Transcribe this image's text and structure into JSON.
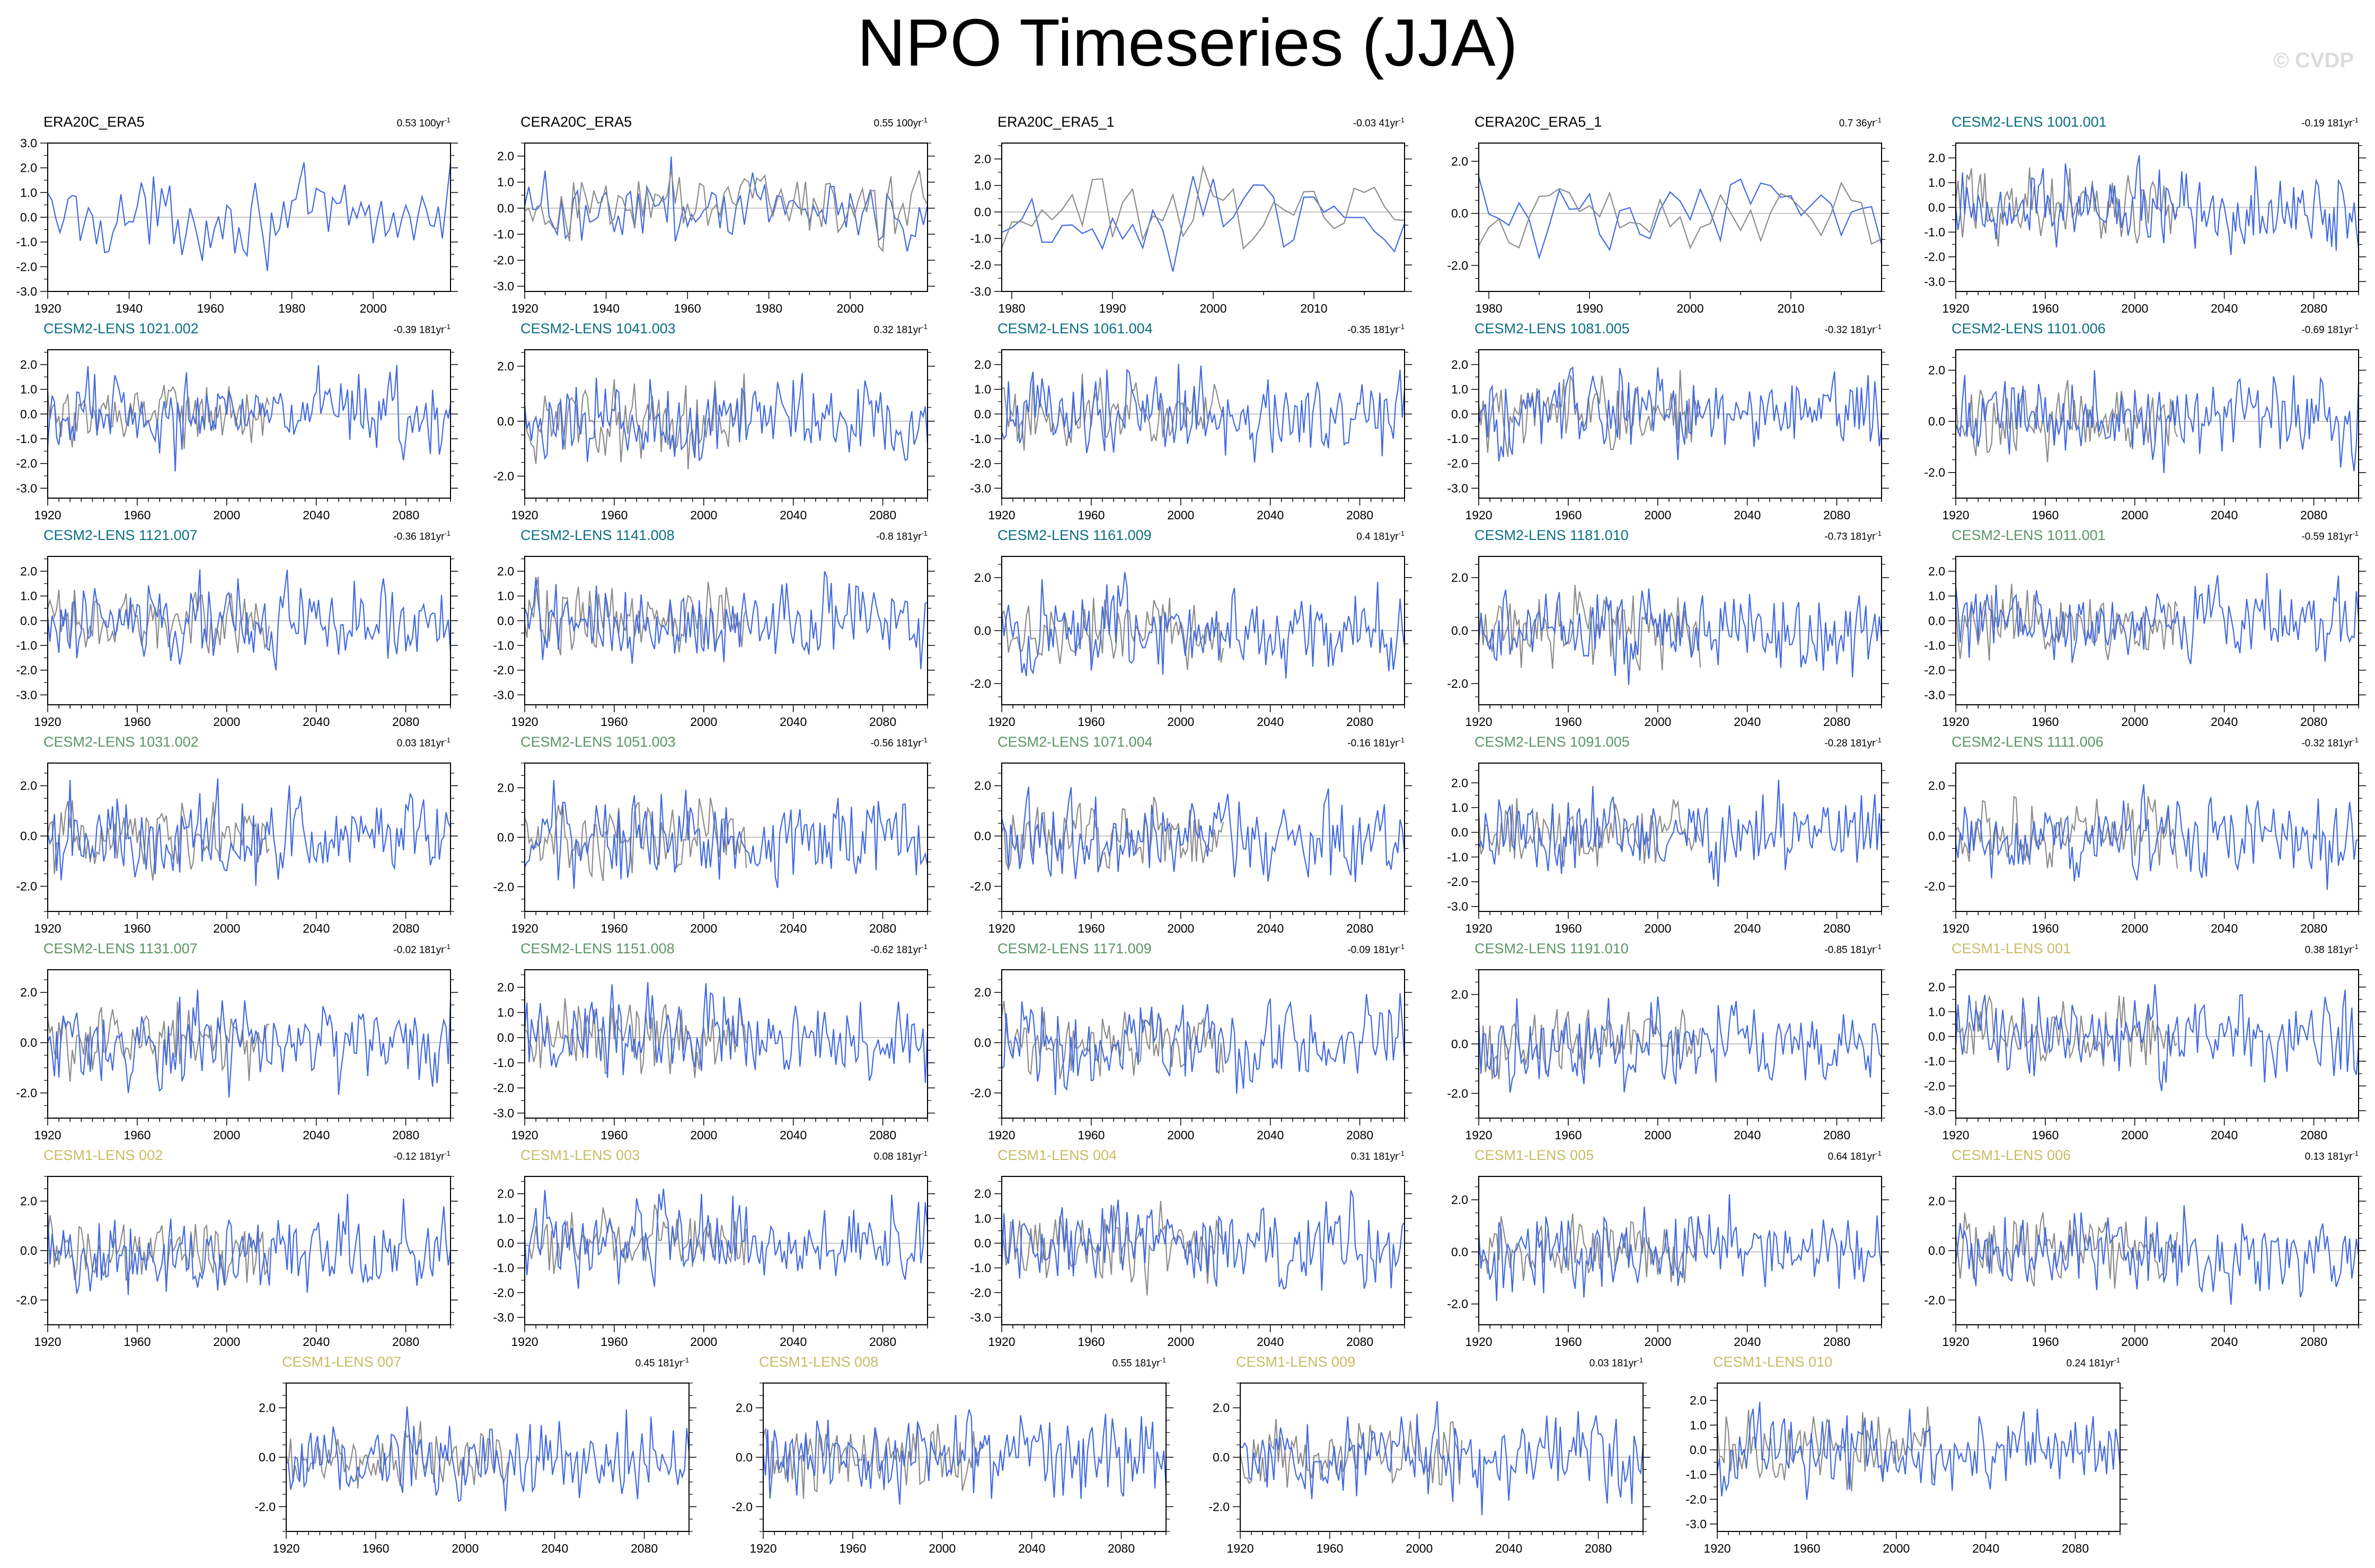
{
  "title": "NPO Timeseries (JJA)",
  "watermark": "© CVDP",
  "colors": {
    "model": "#4169e1",
    "observation": "#8c8c8c",
    "zero_line": "#b4b4b4",
    "obs_title": "#000000",
    "cesm2_smbb": "#0a6e82",
    "cesm2_cmip6": "#5a9664",
    "cesm1": "#c8bc64"
  },
  "chart_data": [
    {
      "type": "line",
      "title": "ERA20C_ERA5",
      "title_color": "obs_title",
      "trend_value": "0.53 100yr",
      "trend_unit_exp": "-1",
      "x_range": [
        1920,
        2019
      ],
      "x_ticks": [
        1920,
        1940,
        1960,
        1980,
        2000
      ],
      "y_ticks": [
        3.0,
        2.0,
        1.0,
        0.0,
        -1.0,
        -2.0,
        -3.0
      ],
      "ylim": [
        -3,
        3
      ],
      "series": []
    },
    {
      "type": "line",
      "title": "CERA20C_ERA5",
      "title_color": "obs_title",
      "trend_value": "0.55 100yr",
      "trend_unit_exp": "-1",
      "x_range": [
        1920,
        2019
      ],
      "x_ticks": [
        1920,
        1940,
        1960,
        1980,
        2000
      ],
      "y_ticks": [
        2.0,
        1.0,
        0.0,
        -1.0,
        -2.0,
        -3.0
      ],
      "ylim": [
        -3.2,
        2.5
      ],
      "series": []
    },
    {
      "type": "line",
      "title": "ERA20C_ERA5_1",
      "title_color": "obs_title",
      "trend_value": "-0.03 41yr",
      "trend_unit_exp": "-1",
      "x_range": [
        1979,
        2019
      ],
      "x_ticks": [
        1980,
        1990,
        2000,
        2010
      ],
      "y_ticks": [
        2.0,
        1.0,
        0.0,
        -1.0,
        -2.0,
        -3.0
      ],
      "ylim": [
        -3,
        2.6
      ],
      "series": []
    },
    {
      "type": "line",
      "title": "CERA20C_ERA5_1",
      "title_color": "obs_title",
      "trend_value": "0.7 36yr",
      "trend_unit_exp": "-1",
      "x_range": [
        1979,
        2019
      ],
      "x_ticks": [
        1980,
        1990,
        2000,
        2010
      ],
      "y_ticks": [
        2.0,
        0.0,
        -2.0
      ],
      "ylim": [
        -3,
        2.7
      ],
      "series": []
    },
    {
      "type": "line",
      "title": "CESM2-LENS 1001.001",
      "title_color": "cesm2_smbb",
      "trend_value": "-0.19 181yr",
      "trend_unit_exp": "-1",
      "x_range": [
        1920,
        2100
      ],
      "x_ticks": [
        1920,
        1960,
        2000,
        2040,
        2080
      ],
      "y_ticks": [
        2.0,
        1.0,
        0.0,
        -1.0,
        -2.0,
        -3.0
      ],
      "ylim": [
        -3.4,
        2.6
      ],
      "series": []
    },
    {
      "type": "line",
      "title": "CESM2-LENS 1021.002",
      "title_color": "cesm2_smbb",
      "trend_value": "-0.39 181yr",
      "trend_unit_exp": "-1",
      "x_range": [
        1920,
        2100
      ],
      "x_ticks": [
        1920,
        1960,
        2000,
        2040,
        2080
      ],
      "y_ticks": [
        2.0,
        1.0,
        0.0,
        -1.0,
        -2.0,
        -3.0
      ],
      "ylim": [
        -3.4,
        2.6
      ],
      "series": []
    },
    {
      "type": "line",
      "title": "CESM2-LENS 1041.003",
      "title_color": "cesm2_smbb",
      "trend_value": "0.32 181yr",
      "trend_unit_exp": "-1",
      "x_range": [
        1920,
        2100
      ],
      "x_ticks": [
        1920,
        1960,
        2000,
        2040,
        2080
      ],
      "y_ticks": [
        2.0,
        0.0,
        -2.0
      ],
      "ylim": [
        -2.8,
        2.6
      ],
      "series": []
    },
    {
      "type": "line",
      "title": "CESM2-LENS 1061.004",
      "title_color": "cesm2_smbb",
      "trend_value": "-0.35 181yr",
      "trend_unit_exp": "-1",
      "x_range": [
        1920,
        2100
      ],
      "x_ticks": [
        1920,
        1960,
        2000,
        2040,
        2080
      ],
      "y_ticks": [
        2.0,
        1.0,
        0.0,
        -1.0,
        -2.0,
        -3.0
      ],
      "ylim": [
        -3.4,
        2.6
      ],
      "series": []
    },
    {
      "type": "line",
      "title": "CESM2-LENS 1081.005",
      "title_color": "cesm2_smbb",
      "trend_value": "-0.32 181yr",
      "trend_unit_exp": "-1",
      "x_range": [
        1920,
        2100
      ],
      "x_ticks": [
        1920,
        1960,
        2000,
        2040,
        2080
      ],
      "y_ticks": [
        2.0,
        1.0,
        0.0,
        -1.0,
        -2.0,
        -3.0
      ],
      "ylim": [
        -3.4,
        2.6
      ],
      "series": []
    },
    {
      "type": "line",
      "title": "CESM2-LENS 1101.006",
      "title_color": "cesm2_smbb",
      "trend_value": "-0.69 181yr",
      "trend_unit_exp": "-1",
      "x_range": [
        1920,
        2100
      ],
      "x_ticks": [
        1920,
        1960,
        2000,
        2040,
        2080
      ],
      "y_ticks": [
        2.0,
        0.0,
        -2.0
      ],
      "ylim": [
        -3.0,
        2.8
      ],
      "series": []
    },
    {
      "type": "line",
      "title": "CESM2-LENS 1121.007",
      "title_color": "cesm2_smbb",
      "trend_value": "-0.36 181yr",
      "trend_unit_exp": "-1",
      "x_range": [
        1920,
        2100
      ],
      "x_ticks": [
        1920,
        1960,
        2000,
        2040,
        2080
      ],
      "y_ticks": [
        2.0,
        1.0,
        0.0,
        -1.0,
        -2.0,
        -3.0
      ],
      "ylim": [
        -3.4,
        2.6
      ],
      "series": []
    },
    {
      "type": "line",
      "title": "CESM2-LENS 1141.008",
      "title_color": "cesm2_smbb",
      "trend_value": "-0.8 181yr",
      "trend_unit_exp": "-1",
      "x_range": [
        1920,
        2100
      ],
      "x_ticks": [
        1920,
        1960,
        2000,
        2040,
        2080
      ],
      "y_ticks": [
        2.0,
        1.0,
        0.0,
        -1.0,
        -2.0,
        -3.0
      ],
      "ylim": [
        -3.4,
        2.6
      ],
      "series": []
    },
    {
      "type": "line",
      "title": "CESM2-LENS 1161.009",
      "title_color": "cesm2_smbb",
      "trend_value": "0.4 181yr",
      "trend_unit_exp": "-1",
      "x_range": [
        1920,
        2100
      ],
      "x_ticks": [
        1920,
        1960,
        2000,
        2040,
        2080
      ],
      "y_ticks": [
        2.0,
        0.0,
        -2.0
      ],
      "ylim": [
        -2.8,
        2.8
      ],
      "series": []
    },
    {
      "type": "line",
      "title": "CESM2-LENS 1181.010",
      "title_color": "cesm2_smbb",
      "trend_value": "-0.73 181yr",
      "trend_unit_exp": "-1",
      "x_range": [
        1920,
        2100
      ],
      "x_ticks": [
        1920,
        1960,
        2000,
        2040,
        2080
      ],
      "y_ticks": [
        2.0,
        0.0,
        -2.0
      ],
      "ylim": [
        -2.8,
        2.8
      ],
      "series": []
    },
    {
      "type": "line",
      "title": "CESM2-LENS 1011.001",
      "title_color": "cesm2_cmip6",
      "trend_value": "-0.59 181yr",
      "trend_unit_exp": "-1",
      "x_range": [
        1920,
        2100
      ],
      "x_ticks": [
        1920,
        1960,
        2000,
        2040,
        2080
      ],
      "y_ticks": [
        2.0,
        1.0,
        0.0,
        -1.0,
        -2.0,
        -3.0
      ],
      "ylim": [
        -3.4,
        2.6
      ],
      "series": []
    },
    {
      "type": "line",
      "title": "CESM2-LENS 1031.002",
      "title_color": "cesm2_cmip6",
      "trend_value": "0.03 181yr",
      "trend_unit_exp": "-1",
      "x_range": [
        1920,
        2100
      ],
      "x_ticks": [
        1920,
        1960,
        2000,
        2040,
        2080
      ],
      "y_ticks": [
        2.0,
        0.0,
        -2.0
      ],
      "ylim": [
        -3.0,
        2.9
      ],
      "series": []
    },
    {
      "type": "line",
      "title": "CESM2-LENS 1051.003",
      "title_color": "cesm2_cmip6",
      "trend_value": "-0.56 181yr",
      "trend_unit_exp": "-1",
      "x_range": [
        1920,
        2100
      ],
      "x_ticks": [
        1920,
        1960,
        2000,
        2040,
        2080
      ],
      "y_ticks": [
        2.0,
        0.0,
        -2.0
      ],
      "ylim": [
        -3.0,
        3.0
      ],
      "series": []
    },
    {
      "type": "line",
      "title": "CESM2-LENS 1071.004",
      "title_color": "cesm2_cmip6",
      "trend_value": "-0.16 181yr",
      "trend_unit_exp": "-1",
      "x_range": [
        1920,
        2100
      ],
      "x_ticks": [
        1920,
        1960,
        2000,
        2040,
        2080
      ],
      "y_ticks": [
        2.0,
        0.0,
        -2.0
      ],
      "ylim": [
        -3.0,
        2.9
      ],
      "series": []
    },
    {
      "type": "line",
      "title": "CESM2-LENS 1091.005",
      "title_color": "cesm2_cmip6",
      "trend_value": "-0.28 181yr",
      "trend_unit_exp": "-1",
      "x_range": [
        1920,
        2100
      ],
      "x_ticks": [
        1920,
        1960,
        2000,
        2040,
        2080
      ],
      "y_ticks": [
        2.0,
        1.0,
        0.0,
        -1.0,
        -2.0,
        -3.0
      ],
      "ylim": [
        -3.2,
        2.8
      ],
      "series": []
    },
    {
      "type": "line",
      "title": "CESM2-LENS 1111.006",
      "title_color": "cesm2_cmip6",
      "trend_value": "-0.32 181yr",
      "trend_unit_exp": "-1",
      "x_range": [
        1920,
        2100
      ],
      "x_ticks": [
        1920,
        1960,
        2000,
        2040,
        2080
      ],
      "y_ticks": [
        2.0,
        0.0,
        -2.0
      ],
      "ylim": [
        -3.0,
        2.9
      ],
      "series": []
    },
    {
      "type": "line",
      "title": "CESM2-LENS 1131.007",
      "title_color": "cesm2_cmip6",
      "trend_value": "-0.02 181yr",
      "trend_unit_exp": "-1",
      "x_range": [
        1920,
        2100
      ],
      "x_ticks": [
        1920,
        1960,
        2000,
        2040,
        2080
      ],
      "y_ticks": [
        2.0,
        0.0,
        -2.0
      ],
      "ylim": [
        -3.0,
        2.9
      ],
      "series": []
    },
    {
      "type": "line",
      "title": "CESM2-LENS 1151.008",
      "title_color": "cesm2_cmip6",
      "trend_value": "-0.62 181yr",
      "trend_unit_exp": "-1",
      "x_range": [
        1920,
        2100
      ],
      "x_ticks": [
        1920,
        1960,
        2000,
        2040,
        2080
      ],
      "y_ticks": [
        2.0,
        1.0,
        0.0,
        -1.0,
        -2.0,
        -3.0
      ],
      "ylim": [
        -3.2,
        2.7
      ],
      "series": []
    },
    {
      "type": "line",
      "title": "CESM2-LENS 1171.009",
      "title_color": "cesm2_cmip6",
      "trend_value": "-0.09 181yr",
      "trend_unit_exp": "-1",
      "x_range": [
        1920,
        2100
      ],
      "x_ticks": [
        1920,
        1960,
        2000,
        2040,
        2080
      ],
      "y_ticks": [
        2.0,
        0.0,
        -2.0
      ],
      "ylim": [
        -3.0,
        2.9
      ],
      "series": []
    },
    {
      "type": "line",
      "title": "CESM2-LENS 1191.010",
      "title_color": "cesm2_cmip6",
      "trend_value": "-0.85 181yr",
      "trend_unit_exp": "-1",
      "x_range": [
        1920,
        2100
      ],
      "x_ticks": [
        1920,
        1960,
        2000,
        2040,
        2080
      ],
      "y_ticks": [
        2.0,
        0.0,
        -2.0
      ],
      "ylim": [
        -3.0,
        3.0
      ],
      "series": []
    },
    {
      "type": "line",
      "title": "CESM1-LENS 001",
      "title_color": "cesm1",
      "trend_value": "0.38 181yr",
      "trend_unit_exp": "-1",
      "x_range": [
        1920,
        2100
      ],
      "x_ticks": [
        1920,
        1960,
        2000,
        2040,
        2080
      ],
      "y_ticks": [
        2.0,
        1.0,
        0.0,
        -1.0,
        -2.0,
        -3.0
      ],
      "ylim": [
        -3.3,
        2.7
      ],
      "series": []
    },
    {
      "type": "line",
      "title": "CESM1-LENS 002",
      "title_color": "cesm1",
      "trend_value": "-0.12 181yr",
      "trend_unit_exp": "-1",
      "x_range": [
        1920,
        2100
      ],
      "x_ticks": [
        1920,
        1960,
        2000,
        2040,
        2080
      ],
      "y_ticks": [
        2.0,
        0.0,
        -2.0
      ],
      "ylim": [
        -3.0,
        3.0
      ],
      "series": []
    },
    {
      "type": "line",
      "title": "CESM1-LENS 003",
      "title_color": "cesm1",
      "trend_value": "0.08 181yr",
      "trend_unit_exp": "-1",
      "x_range": [
        1920,
        2100
      ],
      "x_ticks": [
        1920,
        1960,
        2000,
        2040,
        2080
      ],
      "y_ticks": [
        2.0,
        1.0,
        0.0,
        -1.0,
        -2.0,
        -3.0
      ],
      "ylim": [
        -3.3,
        2.7
      ],
      "series": []
    },
    {
      "type": "line",
      "title": "CESM1-LENS 004",
      "title_color": "cesm1",
      "trend_value": "0.31 181yr",
      "trend_unit_exp": "-1",
      "x_range": [
        1920,
        2100
      ],
      "x_ticks": [
        1920,
        1960,
        2000,
        2040,
        2080
      ],
      "y_ticks": [
        2.0,
        1.0,
        0.0,
        -1.0,
        -2.0,
        -3.0
      ],
      "ylim": [
        -3.3,
        2.7
      ],
      "series": []
    },
    {
      "type": "line",
      "title": "CESM1-LENS 005",
      "title_color": "cesm1",
      "trend_value": "0.64 181yr",
      "trend_unit_exp": "-1",
      "x_range": [
        1920,
        2100
      ],
      "x_ticks": [
        1920,
        1960,
        2000,
        2040,
        2080
      ],
      "y_ticks": [
        2.0,
        0.0,
        -2.0
      ],
      "ylim": [
        -2.8,
        2.9
      ],
      "series": []
    },
    {
      "type": "line",
      "title": "CESM1-LENS 006",
      "title_color": "cesm1",
      "trend_value": "0.13 181yr",
      "trend_unit_exp": "-1",
      "x_range": [
        1920,
        2100
      ],
      "x_ticks": [
        1920,
        1960,
        2000,
        2040,
        2080
      ],
      "y_ticks": [
        2.0,
        0.0,
        -2.0
      ],
      "ylim": [
        -3.0,
        3.0
      ],
      "series": []
    },
    {
      "type": "line",
      "title": "CESM1-LENS 007",
      "title_color": "cesm1",
      "trend_value": "0.45 181yr",
      "trend_unit_exp": "-1",
      "x_range": [
        1920,
        2100
      ],
      "x_ticks": [
        1920,
        1960,
        2000,
        2040,
        2080
      ],
      "y_ticks": [
        2.0,
        0.0,
        -2.0
      ],
      "ylim": [
        -3.0,
        3.0
      ],
      "series": []
    },
    {
      "type": "line",
      "title": "CESM1-LENS 008",
      "title_color": "cesm1",
      "trend_value": "0.55 181yr",
      "trend_unit_exp": "-1",
      "x_range": [
        1920,
        2100
      ],
      "x_ticks": [
        1920,
        1960,
        2000,
        2040,
        2080
      ],
      "y_ticks": [
        2.0,
        0.0,
        -2.0
      ],
      "ylim": [
        -3.0,
        3.0
      ],
      "series": []
    },
    {
      "type": "line",
      "title": "CESM1-LENS 009",
      "title_color": "cesm1",
      "trend_value": "0.03 181yr",
      "trend_unit_exp": "-1",
      "x_range": [
        1920,
        2100
      ],
      "x_ticks": [
        1920,
        1960,
        2000,
        2040,
        2080
      ],
      "y_ticks": [
        2.0,
        0.0,
        -2.0
      ],
      "ylim": [
        -3.0,
        3.0
      ],
      "series": []
    },
    {
      "type": "line",
      "title": "CESM1-LENS 010",
      "title_color": "cesm1",
      "trend_value": "0.24 181yr",
      "trend_unit_exp": "-1",
      "x_range": [
        1920,
        2100
      ],
      "x_ticks": [
        1920,
        1960,
        2000,
        2040,
        2080
      ],
      "y_ticks": [
        2.0,
        1.0,
        0.0,
        -1.0,
        -2.0,
        -3.0
      ],
      "ylim": [
        -3.3,
        2.7
      ],
      "series": []
    }
  ]
}
